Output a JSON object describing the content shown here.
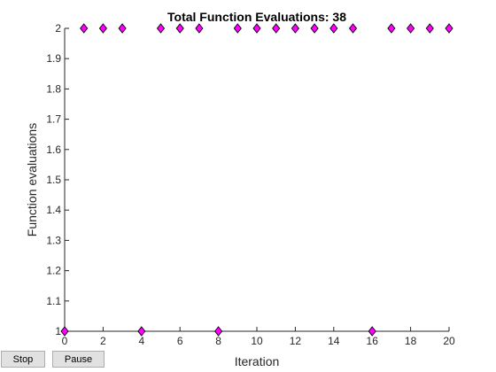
{
  "controls": {
    "stop_label": "Stop",
    "pause_label": "Pause"
  },
  "chart_data": {
    "type": "scatter",
    "title": "Total Function Evaluations: 38",
    "xlabel": "Iteration",
    "ylabel": "Function evaluations",
    "xlim": [
      0,
      20
    ],
    "ylim": [
      1,
      2
    ],
    "x_ticks": [
      "0",
      "2",
      "4",
      "6",
      "8",
      "10",
      "12",
      "14",
      "16",
      "18",
      "20"
    ],
    "y_ticks": [
      "1",
      "1.1",
      "1.2",
      "1.3",
      "1.4",
      "1.5",
      "1.6",
      "1.7",
      "1.8",
      "1.9",
      "2"
    ],
    "marker": "diamond",
    "marker_color": "#ff00ff",
    "marker_edge": "#000000",
    "grid": false,
    "x": [
      0,
      1,
      2,
      3,
      4,
      5,
      6,
      7,
      8,
      9,
      10,
      11,
      12,
      13,
      14,
      15,
      16,
      17,
      18,
      19,
      20
    ],
    "y": [
      1,
      2,
      2,
      2,
      1,
      2,
      2,
      2,
      1,
      2,
      2,
      2,
      2,
      2,
      2,
      2,
      1,
      2,
      2,
      2,
      2
    ]
  }
}
